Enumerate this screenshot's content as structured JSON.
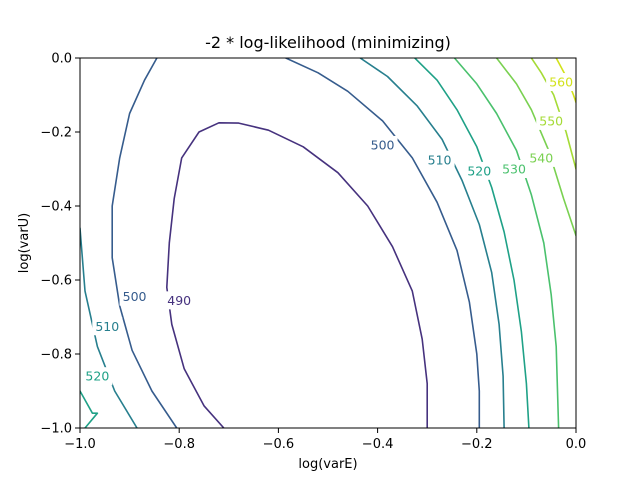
{
  "chart_data": {
    "type": "contour",
    "title": "-2 * log-likelihood (minimizing)",
    "xlabel": "log(varE)",
    "ylabel": "log(varU)",
    "xlim": [
      -1.0,
      0.0
    ],
    "ylim": [
      -1.0,
      0.0
    ],
    "x_ticks": [
      -1.0,
      -0.8,
      -0.6,
      -0.4,
      -0.2,
      0.0
    ],
    "y_ticks": [
      -1.0,
      -0.8,
      -0.6,
      -0.4,
      -0.2,
      0.0
    ],
    "x_tick_labels": [
      "−1.0",
      "−0.8",
      "−0.6",
      "−0.4",
      "−0.2",
      "0.0"
    ],
    "y_tick_labels": [
      "−1.0",
      "−0.8",
      "−0.6",
      "−0.4",
      "−0.2",
      "0.0"
    ],
    "grid": false,
    "colormap": "viridis",
    "levels": [
      {
        "level": 490,
        "label": "490",
        "color": "#46327e",
        "paths": [
          [
            [
              -0.71,
              -1.0
            ],
            [
              -0.75,
              -0.94
            ],
            [
              -0.79,
              -0.84
            ],
            [
              -0.815,
              -0.72
            ],
            [
              -0.825,
              -0.62
            ],
            [
              -0.82,
              -0.5
            ],
            [
              -0.81,
              -0.38
            ],
            [
              -0.795,
              -0.27
            ],
            [
              -0.76,
              -0.2
            ],
            [
              -0.72,
              -0.175
            ],
            [
              -0.68,
              -0.176
            ],
            [
              -0.62,
              -0.195
            ],
            [
              -0.55,
              -0.24
            ],
            [
              -0.48,
              -0.31
            ],
            [
              -0.42,
              -0.4
            ],
            [
              -0.37,
              -0.51
            ],
            [
              -0.33,
              -0.63
            ],
            [
              -0.31,
              -0.76
            ],
            [
              -0.3,
              -0.88
            ],
            [
              -0.3,
              -1.0
            ]
          ]
        ],
        "label_points": [
          [
            -0.8,
            -0.655
          ]
        ]
      },
      {
        "level": 500,
        "label": "500",
        "color": "#365c8d",
        "paths": [
          [
            [
              -0.805,
              -1.0
            ],
            [
              -0.855,
              -0.9
            ],
            [
              -0.895,
              -0.79
            ],
            [
              -0.92,
              -0.67
            ],
            [
              -0.935,
              -0.54
            ],
            [
              -0.935,
              -0.4
            ],
            [
              -0.92,
              -0.27
            ],
            [
              -0.9,
              -0.15
            ],
            [
              -0.87,
              -0.06
            ],
            [
              -0.845,
              0.0
            ]
          ],
          [
            [
              -0.585,
              0.0
            ],
            [
              -0.52,
              -0.04
            ],
            [
              -0.46,
              -0.09
            ],
            [
              -0.39,
              -0.17
            ],
            [
              -0.33,
              -0.27
            ],
            [
              -0.28,
              -0.39
            ],
            [
              -0.24,
              -0.52
            ],
            [
              -0.215,
              -0.66
            ],
            [
              -0.2,
              -0.8
            ],
            [
              -0.195,
              -0.9
            ],
            [
              -0.195,
              -1.0
            ]
          ]
        ],
        "label_points": [
          [
            -0.89,
            -0.645
          ],
          [
            -0.39,
            -0.235
          ]
        ]
      },
      {
        "level": 510,
        "label": "510",
        "color": "#277f8e",
        "paths": [
          [
            [
              -0.885,
              -1.0
            ],
            [
              -0.93,
              -0.9
            ],
            [
              -0.965,
              -0.78
            ],
            [
              -0.99,
              -0.63
            ],
            [
              -1.0,
              -0.46
            ]
          ],
          [
            [
              -0.435,
              0.0
            ],
            [
              -0.38,
              -0.05
            ],
            [
              -0.32,
              -0.13
            ],
            [
              -0.27,
              -0.22
            ],
            [
              -0.23,
              -0.33
            ],
            [
              -0.195,
              -0.45
            ],
            [
              -0.17,
              -0.58
            ],
            [
              -0.155,
              -0.72
            ],
            [
              -0.147,
              -0.86
            ],
            [
              -0.145,
              -1.0
            ]
          ]
        ],
        "label_points": [
          [
            -0.945,
            -0.725
          ],
          [
            -0.275,
            -0.275
          ]
        ]
      },
      {
        "level": 520,
        "label": "520",
        "color": "#1fa187",
        "paths": [
          [
            [
              -0.99,
              -1.0
            ],
            [
              -0.965,
              -0.96
            ],
            [
              -0.975,
              -0.96
            ],
            [
              -1.0,
              -0.9
            ]
          ],
          [
            [
              -0.325,
              0.0
            ],
            [
              -0.28,
              -0.06
            ],
            [
              -0.24,
              -0.14
            ],
            [
              -0.2,
              -0.24
            ],
            [
              -0.17,
              -0.35
            ],
            [
              -0.145,
              -0.47
            ],
            [
              -0.125,
              -0.6
            ],
            [
              -0.11,
              -0.74
            ],
            [
              -0.1,
              -0.88
            ],
            [
              -0.095,
              -1.0
            ]
          ]
        ],
        "label_points": [
          [
            -0.965,
            -0.86
          ],
          [
            -0.195,
            -0.305
          ]
        ]
      },
      {
        "level": 530,
        "label": "530",
        "color": "#4ac16d",
        "paths": [
          [
            [
              -0.245,
              0.0
            ],
            [
              -0.2,
              -0.07
            ],
            [
              -0.16,
              -0.15
            ],
            [
              -0.12,
              -0.25
            ],
            [
              -0.09,
              -0.37
            ],
            [
              -0.065,
              -0.5
            ],
            [
              -0.05,
              -0.64
            ],
            [
              -0.04,
              -0.78
            ],
            [
              -0.035,
              -1.0
            ]
          ]
        ],
        "label_points": [
          [
            -0.125,
            -0.3
          ]
        ]
      },
      {
        "level": 540,
        "label": "540",
        "color": "#7ad151",
        "paths": [
          [
            [
              -0.16,
              0.0
            ],
            [
              -0.12,
              -0.07
            ],
            [
              -0.09,
              -0.14
            ],
            [
              -0.055,
              -0.25
            ],
            [
              -0.025,
              -0.38
            ],
            [
              0.0,
              -0.48
            ]
          ]
        ],
        "label_points": [
          [
            -0.07,
            -0.27
          ]
        ]
      },
      {
        "level": 550,
        "label": "550",
        "color": "#a5db36",
        "paths": [
          [
            [
              -0.09,
              0.0
            ],
            [
              -0.07,
              -0.04
            ],
            [
              -0.045,
              -0.1
            ],
            [
              -0.02,
              -0.2
            ],
            [
              0.0,
              -0.3
            ]
          ]
        ],
        "label_points": [
          [
            -0.05,
            -0.17
          ]
        ]
      },
      {
        "level": 560,
        "label": "560",
        "color": "#d2e21b",
        "paths": [
          [
            [
              -0.04,
              0.0
            ],
            [
              -0.02,
              -0.05
            ],
            [
              -0.005,
              -0.1
            ],
            [
              0.0,
              -0.12
            ]
          ]
        ],
        "label_points": [
          [
            -0.03,
            -0.065
          ]
        ]
      }
    ]
  }
}
